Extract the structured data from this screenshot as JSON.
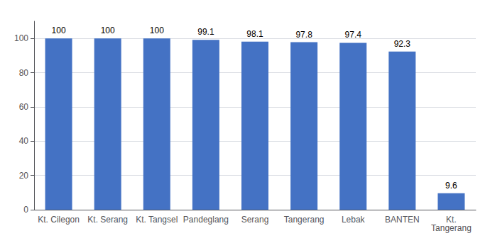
{
  "chart_data": {
    "type": "bar",
    "categories": [
      "Kt. Cilegon",
      "Kt. Serang",
      "Kt. Tangsel",
      "Pandeglang",
      "Serang",
      "Tangerang",
      "Lebak",
      "BANTEN",
      "Kt.\nTangerang"
    ],
    "values": [
      100,
      100,
      100,
      99.1,
      98.1,
      97.8,
      97.4,
      92.3,
      9.6
    ],
    "color": "#4472C4",
    "ylim": [
      0,
      110
    ],
    "yticks": [
      0,
      20,
      40,
      60,
      80,
      100
    ],
    "grid": true,
    "data_labels": true
  }
}
